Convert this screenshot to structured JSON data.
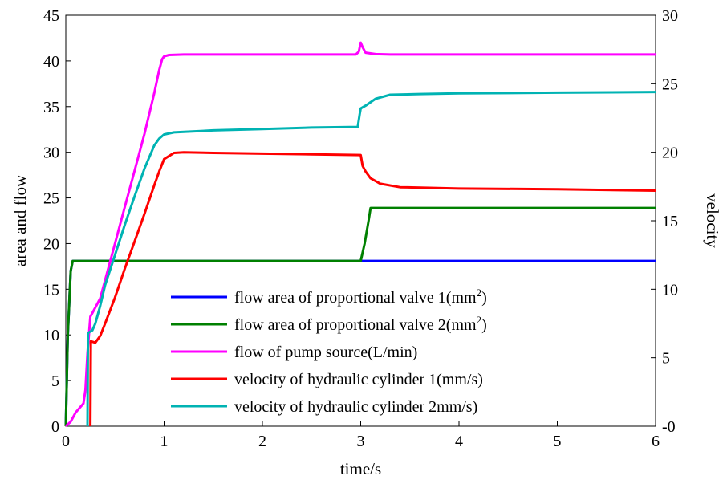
{
  "chart_data": {
    "type": "line",
    "xlabel": "time/s",
    "ylabel_left": "area and flow",
    "ylabel_right": "velocity",
    "xlim": [
      0,
      6
    ],
    "ylim_left": [
      0,
      45
    ],
    "ylim_right": [
      0,
      30
    ],
    "x_ticks": [
      "0",
      "1",
      "2",
      "3",
      "4",
      "5",
      "6"
    ],
    "y_left_ticks": [
      "0",
      "5",
      "10",
      "15",
      "20",
      "25",
      "30",
      "35",
      "40",
      "45"
    ],
    "y_right_ticks": [
      "-0",
      "5",
      "10",
      "15",
      "20",
      "25",
      "30"
    ],
    "grid": false,
    "legend_position": "inside-lower-middle",
    "series": [
      {
        "name": "flow area of proportional valve 1(mm",
        "name_sup": "2",
        "name_tail": ")",
        "color": "#0000ff",
        "axis": "left",
        "points": [
          [
            0,
            0
          ],
          [
            0.02,
            10
          ],
          [
            0.05,
            17
          ],
          [
            0.07,
            18.1
          ],
          [
            3.0,
            18.1
          ],
          [
            6.0,
            18.1
          ]
        ]
      },
      {
        "name": "flow area of proportional valve 2(mm",
        "name_sup": "2",
        "name_tail": ")",
        "color": "#008000",
        "axis": "left",
        "points": [
          [
            0,
            0
          ],
          [
            0.02,
            10
          ],
          [
            0.05,
            17
          ],
          [
            0.07,
            18.1
          ],
          [
            3.0,
            18.1
          ],
          [
            3.04,
            20
          ],
          [
            3.08,
            22.5
          ],
          [
            3.1,
            23.9
          ],
          [
            6.0,
            23.9
          ]
        ]
      },
      {
        "name": "flow of pump source(L/min)",
        "color": "#ff00ff",
        "axis": "left",
        "points": [
          [
            0,
            0
          ],
          [
            0.05,
            0.5
          ],
          [
            0.1,
            1.5
          ],
          [
            0.18,
            2.5
          ],
          [
            0.2,
            4
          ],
          [
            0.22,
            8
          ],
          [
            0.25,
            12
          ],
          [
            0.3,
            13
          ],
          [
            0.35,
            14
          ],
          [
            0.4,
            16
          ],
          [
            0.5,
            20
          ],
          [
            0.6,
            24
          ],
          [
            0.7,
            28
          ],
          [
            0.8,
            32
          ],
          [
            0.9,
            36.5
          ],
          [
            0.95,
            39
          ],
          [
            0.98,
            40.2
          ],
          [
            1.0,
            40.5
          ],
          [
            1.05,
            40.65
          ],
          [
            1.2,
            40.7
          ],
          [
            2.0,
            40.7
          ],
          [
            2.95,
            40.7
          ],
          [
            2.98,
            41
          ],
          [
            3.0,
            42
          ],
          [
            3.02,
            41.5
          ],
          [
            3.05,
            40.9
          ],
          [
            3.15,
            40.75
          ],
          [
            3.3,
            40.7
          ],
          [
            6.0,
            40.7
          ]
        ]
      },
      {
        "name": "velocity of hydraulic cylinder 1(mm/s)",
        "color": "#ff0000",
        "axis": "right",
        "points": [
          [
            0.25,
            0
          ],
          [
            0.255,
            6.2
          ],
          [
            0.3,
            6.1
          ],
          [
            0.35,
            6.6
          ],
          [
            0.4,
            7.5
          ],
          [
            0.5,
            9.4
          ],
          [
            0.6,
            11.5
          ],
          [
            0.7,
            13.5
          ],
          [
            0.8,
            15.5
          ],
          [
            0.9,
            17.6
          ],
          [
            0.95,
            18.6
          ],
          [
            1.0,
            19.5
          ],
          [
            1.1,
            19.95
          ],
          [
            1.2,
            20.0
          ],
          [
            1.5,
            19.95
          ],
          [
            2.0,
            19.9
          ],
          [
            2.5,
            19.85
          ],
          [
            3.0,
            19.8
          ],
          [
            3.02,
            19.0
          ],
          [
            3.05,
            18.6
          ],
          [
            3.1,
            18.1
          ],
          [
            3.2,
            17.7
          ],
          [
            3.4,
            17.45
          ],
          [
            3.7,
            17.4
          ],
          [
            4.0,
            17.35
          ],
          [
            5.0,
            17.3
          ],
          [
            6.0,
            17.2
          ]
        ]
      },
      {
        "name": "velocity of hydraulic cylinder 2mm/s)",
        "color": "#00b3b3",
        "axis": "right",
        "points": [
          [
            0.22,
            0
          ],
          [
            0.225,
            6.8
          ],
          [
            0.27,
            7.0
          ],
          [
            0.3,
            7.5
          ],
          [
            0.35,
            8.8
          ],
          [
            0.4,
            10.3
          ],
          [
            0.5,
            12.5
          ],
          [
            0.6,
            14.7
          ],
          [
            0.7,
            16.8
          ],
          [
            0.8,
            18.8
          ],
          [
            0.9,
            20.5
          ],
          [
            0.95,
            21.0
          ],
          [
            1.0,
            21.3
          ],
          [
            1.1,
            21.45
          ],
          [
            1.5,
            21.6
          ],
          [
            2.0,
            21.7
          ],
          [
            2.5,
            21.8
          ],
          [
            2.97,
            21.85
          ],
          [
            2.99,
            22.8
          ],
          [
            3.0,
            23.2
          ],
          [
            3.05,
            23.4
          ],
          [
            3.15,
            23.9
          ],
          [
            3.3,
            24.2
          ],
          [
            3.6,
            24.25
          ],
          [
            4.0,
            24.3
          ],
          [
            5.0,
            24.35
          ],
          [
            6.0,
            24.4
          ]
        ]
      }
    ]
  }
}
